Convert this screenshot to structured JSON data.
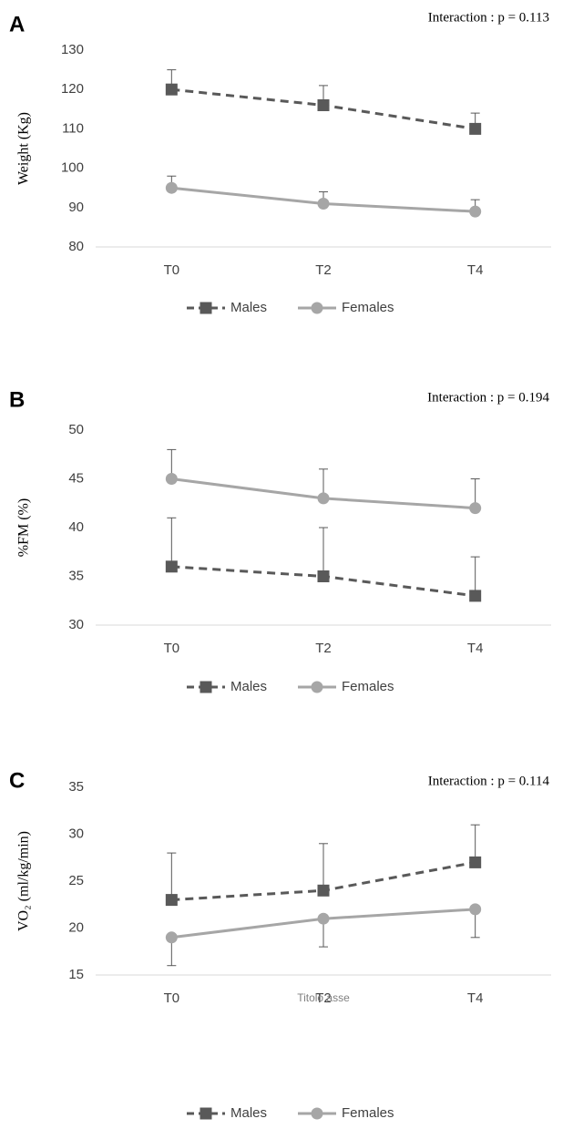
{
  "chart_data": [
    {
      "type": "line",
      "panel_label": "A",
      "annotation": "Interaction : p = 0.113",
      "y_label": "Weight  (Kg)",
      "categories": [
        "T0",
        "T2",
        "T4"
      ],
      "series": [
        {
          "name": "Males",
          "color": "#595959",
          "line_style": "dashed",
          "marker": "square",
          "values": [
            120,
            116,
            110
          ],
          "errors": [
            5,
            5,
            4
          ],
          "error_direction": "up"
        },
        {
          "name": "Females",
          "color": "#a6a6a6",
          "line_style": "solid",
          "marker": "circle",
          "values": [
            95,
            91,
            89
          ],
          "errors": [
            3,
            3,
            3
          ],
          "error_direction": "up"
        }
      ],
      "ylim": [
        80,
        130
      ],
      "yticks": [
        80,
        90,
        100,
        110,
        120,
        130
      ],
      "grid": false
    },
    {
      "type": "line",
      "panel_label": "B",
      "annotation": "Interaction : p = 0.194",
      "y_label": "%FM (%)",
      "categories": [
        "T0",
        "T2",
        "T4"
      ],
      "series": [
        {
          "name": "Males",
          "color": "#595959",
          "line_style": "dashed",
          "marker": "square",
          "values": [
            36,
            35,
            33
          ],
          "errors": [
            5,
            5,
            4
          ],
          "error_direction": "up"
        },
        {
          "name": "Females",
          "color": "#a6a6a6",
          "line_style": "solid",
          "marker": "circle",
          "values": [
            45,
            43,
            42
          ],
          "errors": [
            3,
            3,
            3
          ],
          "error_direction": "up"
        }
      ],
      "ylim": [
        30,
        50
      ],
      "yticks": [
        30,
        35,
        40,
        45,
        50
      ],
      "grid": false
    },
    {
      "type": "line",
      "panel_label": "C",
      "annotation": "Interaction : p = 0.114",
      "y_label": "VO₂ (ml/kg/min)",
      "x_label": "Titolo asse",
      "categories": [
        "T0",
        "T2",
        "T4"
      ],
      "series": [
        {
          "name": "Males",
          "color": "#595959",
          "line_style": "dashed",
          "marker": "square",
          "values": [
            23,
            24,
            27
          ],
          "errors": [
            5,
            5,
            4
          ],
          "error_direction": "up"
        },
        {
          "name": "Females",
          "color": "#a6a6a6",
          "line_style": "solid",
          "marker": "circle",
          "values": [
            19,
            21,
            22
          ],
          "errors": [
            3,
            3,
            3
          ],
          "error_direction": "down"
        }
      ],
      "ylim": [
        15,
        35
      ],
      "yticks": [
        15,
        20,
        25,
        30,
        35
      ],
      "grid": false
    }
  ]
}
